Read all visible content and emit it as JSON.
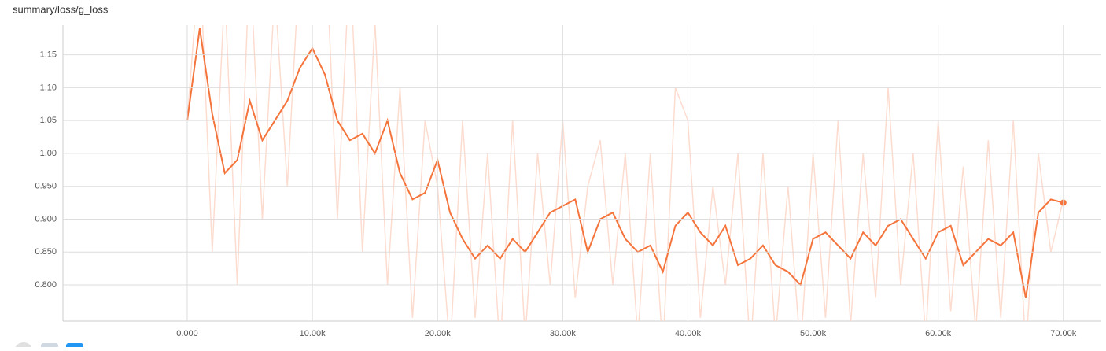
{
  "chart_data": {
    "type": "line",
    "title": "summary/loss/g_loss",
    "x": [
      0,
      1000,
      2000,
      3000,
      4000,
      5000,
      6000,
      7000,
      8000,
      9000,
      10000,
      11000,
      12000,
      13000,
      14000,
      15000,
      16000,
      17000,
      18000,
      19000,
      20000,
      21000,
      22000,
      23000,
      24000,
      25000,
      26000,
      27000,
      28000,
      29000,
      30000,
      31000,
      32000,
      33000,
      34000,
      35000,
      36000,
      37000,
      38000,
      39000,
      40000,
      41000,
      42000,
      43000,
      44000,
      45000,
      46000,
      47000,
      48000,
      49000,
      50000,
      51000,
      52000,
      53000,
      54000,
      55000,
      56000,
      57000,
      58000,
      59000,
      60000,
      61000,
      62000,
      63000,
      64000,
      65000,
      66000,
      67000,
      68000,
      69000,
      70000
    ],
    "series": [
      {
        "color": "#fddcd0",
        "values": [
          1.05,
          1.3,
          0.85,
          1.25,
          0.8,
          1.3,
          0.9,
          1.25,
          0.95,
          1.3,
          1.2,
          1.35,
          0.9,
          1.3,
          0.85,
          1.2,
          0.8,
          1.1,
          0.75,
          1.05,
          0.95,
          0.7,
          1.05,
          0.75,
          1.0,
          0.7,
          1.05,
          0.72,
          1.0,
          0.8,
          1.05,
          0.78,
          0.95,
          1.02,
          0.8,
          1.0,
          0.72,
          1.0,
          0.7,
          1.1,
          1.05,
          0.75,
          0.95,
          0.8,
          1.0,
          0.7,
          1.0,
          0.72,
          0.95,
          0.7,
          1.0,
          0.75,
          1.05,
          0.74,
          1.0,
          0.78,
          1.1,
          0.8,
          1.0,
          0.72,
          1.05,
          0.76,
          0.98,
          0.73,
          1.02,
          0.75,
          1.05,
          0.7,
          1.0,
          0.85,
          0.93
        ]
      },
      {
        "color": "#f4743b",
        "values": [
          1.05,
          1.19,
          1.06,
          0.97,
          0.99,
          1.08,
          1.02,
          1.05,
          1.08,
          1.13,
          1.16,
          1.12,
          1.05,
          1.02,
          1.03,
          1.0,
          1.05,
          0.97,
          0.93,
          0.94,
          0.99,
          0.91,
          0.87,
          0.84,
          0.86,
          0.84,
          0.87,
          0.85,
          0.88,
          0.91,
          0.92,
          0.93,
          0.85,
          0.9,
          0.91,
          0.87,
          0.85,
          0.86,
          0.82,
          0.89,
          0.91,
          0.88,
          0.86,
          0.89,
          0.83,
          0.84,
          0.86,
          0.83,
          0.82,
          0.8,
          0.87,
          0.88,
          0.86,
          0.84,
          0.88,
          0.86,
          0.89,
          0.9,
          0.87,
          0.84,
          0.88,
          0.89,
          0.83,
          0.85,
          0.87,
          0.86,
          0.88,
          0.78,
          0.91,
          0.93,
          0.925
        ]
      }
    ],
    "xlim": [
      -9930,
      73030
    ],
    "ylim": [
      0.745,
      1.195
    ],
    "xticks": [
      {
        "value": 0,
        "label": "0.000"
      },
      {
        "value": 10000,
        "label": "10.00k"
      },
      {
        "value": 20000,
        "label": "20.00k"
      },
      {
        "value": 30000,
        "label": "30.00k"
      },
      {
        "value": 40000,
        "label": "40.00k"
      },
      {
        "value": 50000,
        "label": "50.00k"
      },
      {
        "value": 60000,
        "label": "60.00k"
      },
      {
        "value": 70000,
        "label": "70.00k"
      }
    ],
    "yticks": [
      {
        "value": 0.8,
        "label": "0.800"
      },
      {
        "value": 0.85,
        "label": "0.850"
      },
      {
        "value": 0.9,
        "label": "0.900"
      },
      {
        "value": 0.95,
        "label": "0.950"
      },
      {
        "value": 1.0,
        "label": "1.00"
      },
      {
        "value": 1.05,
        "label": "1.05"
      },
      {
        "value": 1.1,
        "label": "1.10"
      },
      1.15
    ],
    "grid": true
  }
}
